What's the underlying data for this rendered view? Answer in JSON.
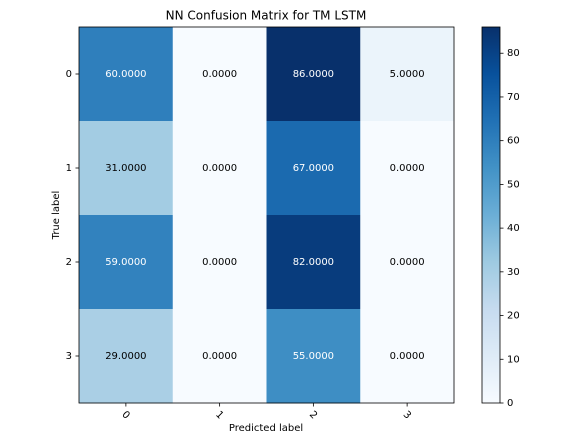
{
  "chart_data": {
    "type": "heatmap",
    "title": "NN Confusion Matrix for TM LSTM",
    "xlabel": "Predicted label",
    "ylabel": "True label",
    "x_categories": [
      "0",
      "1",
      "2",
      "3"
    ],
    "y_categories": [
      "0",
      "1",
      "2",
      "3"
    ],
    "values": [
      [
        60,
        0,
        86,
        5
      ],
      [
        31,
        0,
        67,
        0
      ],
      [
        59,
        0,
        82,
        0
      ],
      [
        29,
        0,
        55,
        0
      ]
    ],
    "value_labels": [
      [
        "60.0000",
        "0.0000",
        "86.0000",
        "5.0000"
      ],
      [
        "31.0000",
        "0.0000",
        "67.0000",
        "0.0000"
      ],
      [
        "59.0000",
        "0.0000",
        "82.0000",
        "0.0000"
      ],
      [
        "29.0000",
        "0.0000",
        "55.0000",
        "0.0000"
      ]
    ],
    "colormap": "Blues",
    "clim": [
      0,
      86
    ],
    "cticks": [
      0,
      10,
      20,
      30,
      40,
      50,
      60,
      70,
      80
    ]
  }
}
